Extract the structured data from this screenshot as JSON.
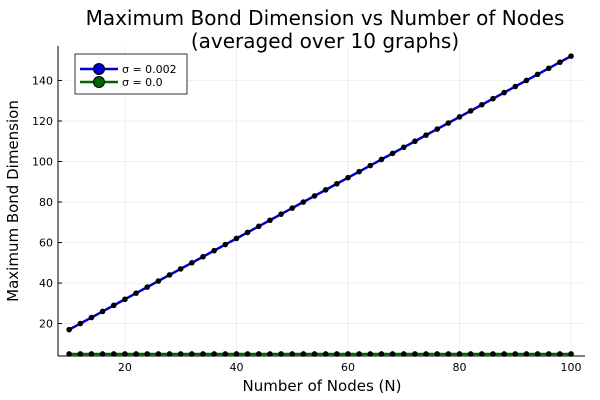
{
  "chart_data": {
    "type": "line",
    "title": "Maximum Bond Dimension vs Number of Nodes",
    "subtitle": "(averaged over 10 graphs)",
    "xlabel": "Number of Nodes (N)",
    "ylabel": "Maximum Bond Dimension",
    "xlim": [
      8,
      102.5
    ],
    "ylim": [
      4,
      157
    ],
    "xticks": [
      20,
      40,
      60,
      80,
      100
    ],
    "yticks": [
      20,
      40,
      60,
      80,
      100,
      120,
      140
    ],
    "grid": true,
    "legend_position": "top-left",
    "x": [
      10,
      12,
      14,
      16,
      18,
      20,
      22,
      24,
      26,
      28,
      30,
      32,
      34,
      36,
      38,
      40,
      42,
      44,
      46,
      48,
      50,
      52,
      54,
      56,
      58,
      60,
      62,
      64,
      66,
      68,
      70,
      72,
      74,
      76,
      78,
      80,
      82,
      84,
      86,
      88,
      90,
      92,
      94,
      96,
      98,
      100
    ],
    "series": [
      {
        "name": "σ = 0.002",
        "color": "#0000cc",
        "values": [
          17,
          20,
          23,
          26,
          29,
          32,
          35,
          38,
          41,
          44,
          47,
          50,
          53,
          56,
          59,
          62,
          65,
          68,
          71,
          74,
          77,
          80,
          83,
          86,
          89,
          92,
          95,
          98,
          101,
          104,
          107,
          110,
          113,
          116,
          119,
          122,
          125,
          128,
          131,
          134,
          137,
          140,
          143,
          146,
          149,
          152
        ]
      },
      {
        "name": "σ = 0.0",
        "color": "#006400",
        "values": [
          5,
          5,
          5,
          5,
          5,
          5,
          5,
          5,
          5,
          5,
          5,
          5,
          5,
          5,
          5,
          5,
          5,
          5,
          5,
          5,
          5,
          5,
          5,
          5,
          5,
          5,
          5,
          5,
          5,
          5,
          5,
          5,
          5,
          5,
          5,
          5,
          5,
          5,
          5,
          5,
          5,
          5,
          5,
          5,
          5,
          5
        ]
      }
    ]
  }
}
